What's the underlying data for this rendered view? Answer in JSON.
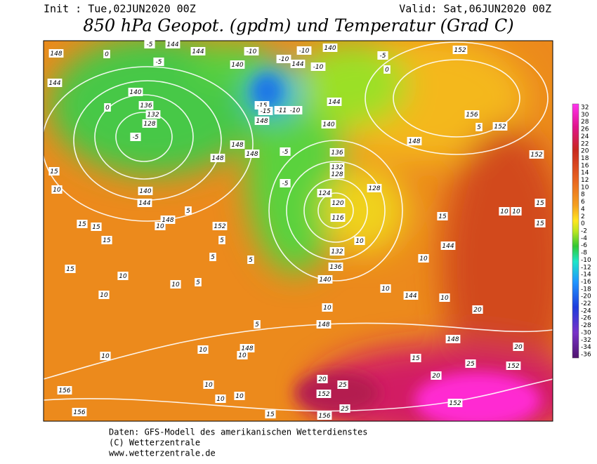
{
  "header": {
    "init": "Init : Tue,02JUN2020 00Z",
    "valid": "Valid: Sat,06JUN2020 00Z",
    "title": "850 hPa Geopot. (gpdm) und Temperatur (Grad C)"
  },
  "colorbar": {
    "labels": [
      "32",
      "30",
      "28",
      "26",
      "24",
      "22",
      "20",
      "18",
      "16",
      "14",
      "12",
      "10",
      "8",
      "6",
      "4",
      "2",
      "0",
      "-2",
      "-4",
      "-6",
      "-8",
      "-10",
      "-12",
      "-14",
      "-16",
      "-18",
      "-20",
      "-22",
      "-24",
      "-26",
      "-28",
      "-30",
      "-32",
      "-34",
      "-36"
    ]
  },
  "map": {
    "contour_labels": [
      "148",
      "0",
      "-5",
      "144",
      "144",
      "-10",
      "-10",
      "-10",
      "140",
      "-5",
      "152",
      "-5",
      "140",
      "144",
      "-10",
      "0",
      "144",
      "140",
      "0",
      "136",
      "132",
      "128",
      "-5",
      "-15",
      "-15",
      "-11",
      "-10",
      "144",
      "148",
      "140",
      "156",
      "5",
      "152",
      "148",
      "148",
      "148",
      "148",
      "-5",
      "136",
      "132",
      "128",
      "128",
      "-5",
      "124",
      "120",
      "116",
      "152",
      "140",
      "144",
      "148",
      "152",
      "10",
      "15",
      "144",
      "10",
      "132",
      "136",
      "140",
      "10",
      "144",
      "10",
      "20",
      "10",
      "148",
      "148",
      "148",
      "10",
      "10",
      "10",
      "152",
      "25",
      "20",
      "20",
      "25",
      "152",
      "152",
      "156",
      "156",
      "156",
      "25",
      "20",
      "15",
      "10",
      "10",
      "10",
      "15",
      "10",
      "10",
      "10",
      "5",
      "5",
      "5",
      "5",
      "5",
      "15",
      "15",
      "15",
      "15",
      "10",
      "15",
      "15",
      "10",
      "10",
      "5",
      "15",
      "10"
    ]
  },
  "footer": {
    "lines": [
      "Daten: GFS-Modell des amerikanischen Wetterdienstes",
      "(C) Wetterzentrale",
      "www.wetterzentrale.de"
    ]
  }
}
